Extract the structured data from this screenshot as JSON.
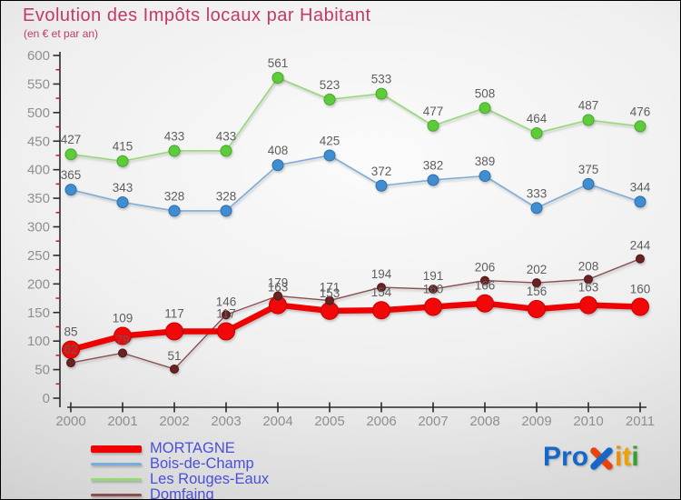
{
  "title": "Evolution des Impôts locaux par Habitant",
  "subtitle": "(en € et par an)",
  "chart_data": {
    "type": "line",
    "title": "Evolution des Impôts locaux par Habitant",
    "subtitle": "(en € et par an)",
    "x_labels": [
      "2000",
      "2001",
      "2002",
      "2003",
      "2004",
      "2005",
      "2006",
      "2007",
      "2008",
      "2009",
      "2010",
      "2011"
    ],
    "ylim": [
      0,
      600
    ],
    "ytick_step": 50,
    "y_minor_tick_step": 25,
    "grid": false,
    "legend_position": "bottom-left",
    "axis_color": "#2b2b2b",
    "tick_label_color": "#8f8f8f",
    "minor_tick_color": "#d01414",
    "value_label_color": "#5e5e5e",
    "series": [
      {
        "name": "MORTAGNE",
        "values": [
          85,
          109,
          117,
          117,
          163,
          153,
          154,
          160,
          166,
          156,
          163,
          160
        ],
        "line_color": "#ee0202",
        "marker_color": "#f20808",
        "marker_stroke": "#c50000",
        "line_width": 6.5,
        "marker_radius": 9.5,
        "z_line": 4,
        "z_marker": 3
      },
      {
        "name": "Bois-de-Champ",
        "values": [
          365,
          343,
          328,
          328,
          408,
          425,
          372,
          382,
          389,
          333,
          375,
          344
        ],
        "line_color": "#7cadd9",
        "marker_color": "#3f8ed2",
        "marker_stroke": "#2f6fa8",
        "line_width": 1.6,
        "marker_radius": 6,
        "z_line": 1,
        "z_marker": 1
      },
      {
        "name": "Les Rouges-Eaux",
        "values": [
          427,
          415,
          433,
          433,
          561,
          523,
          533,
          477,
          508,
          464,
          487,
          476
        ],
        "line_color": "#94da74",
        "marker_color": "#5ecb3a",
        "marker_stroke": "#47a82a",
        "line_width": 1.6,
        "marker_radius": 6,
        "z_line": 2,
        "z_marker": 2
      },
      {
        "name": "Domfaing",
        "values": [
          62,
          79,
          51,
          146,
          179,
          171,
          194,
          191,
          206,
          202,
          208,
          244
        ],
        "line_color": "#8a5050",
        "marker_color": "#6b2222",
        "marker_stroke": "#4f1515",
        "line_width": 1.4,
        "marker_radius": 4.5,
        "z_line": 3,
        "z_marker": 4
      }
    ]
  },
  "legend": {
    "items": [
      {
        "label": "MORTAGNE",
        "color": "#ee0202",
        "thick": true
      },
      {
        "label": "Bois-de-Champ",
        "color": "#7cadd9",
        "thick": false
      },
      {
        "label": "Les Rouges-Eaux",
        "color": "#94da74",
        "thick": false
      },
      {
        "label": "Domfaing",
        "color": "#8a5050",
        "thick": false
      }
    ]
  },
  "logo": {
    "text": "Proxiti",
    "letters": [
      {
        "ch": "P",
        "color": "#1668c8"
      },
      {
        "ch": "r",
        "color": "#1668c8"
      },
      {
        "ch": "o",
        "color": "#1668c8"
      },
      {
        "ch": "x",
        "color": "#e8420c",
        "color2": "#1668c8"
      },
      {
        "ch": "i",
        "color": "#f08c00"
      },
      {
        "ch": "t",
        "color": "#f0a000"
      },
      {
        "ch": "i",
        "color": "#35a02c"
      }
    ]
  }
}
